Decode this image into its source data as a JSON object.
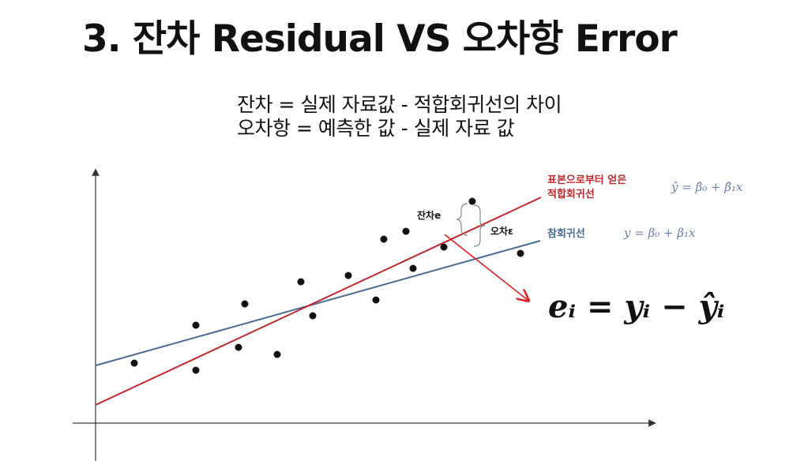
{
  "title": "3. 잔차 Residual VS 오차항 Error",
  "definitions": {
    "residual": "잔차 = 실제 자료값 - 적합회귀선의 차이",
    "error": "오차항 = 예측한 값 - 실제 자료 값"
  },
  "legend": {
    "fitted_line_label_1": "표본으로부터 얻은",
    "fitted_line_label_2": "적합회귀선",
    "fitted_line_eq": "ŷ = β̂₀ + β̂₁x",
    "true_line_label": "참회귀선",
    "true_line_eq": "y = β₀ + β₁x"
  },
  "annotations": {
    "residual": "잔차e",
    "error": "오차ε"
  },
  "formula": "eᵢ = yᵢ − ŷᵢ",
  "colors": {
    "fitted_line": "#c0282d",
    "true_line": "#4a6a93",
    "arrow": "#e02020",
    "points": "#111111"
  }
}
